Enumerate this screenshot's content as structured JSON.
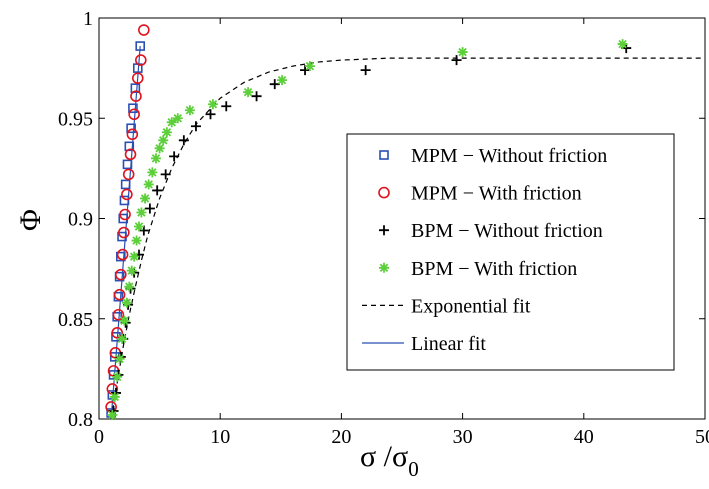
{
  "chart_data": {
    "type": "scatter",
    "xlabel_main": "σ /σ",
    "xlabel_sub": "0",
    "ylabel": "Φ",
    "xlim": [
      0,
      50
    ],
    "ylim": [
      0.8,
      1.0
    ],
    "xticks": [
      0,
      10,
      20,
      30,
      40,
      50
    ],
    "yticks": [
      0.8,
      0.85,
      0.9,
      0.95,
      1.0
    ],
    "xtick_labels": [
      "0",
      "10",
      "20",
      "30",
      "40",
      "50"
    ],
    "ytick_labels": [
      "0.8",
      "0.85",
      "0.9",
      "0.95",
      "1"
    ],
    "grid": false,
    "legend_position": "right",
    "legend": [
      {
        "label": "MPM − Without friction",
        "marker": "square",
        "color": "#2a4fb4"
      },
      {
        "label": "MPM − With friction",
        "marker": "circle",
        "color": "#e0141e"
      },
      {
        "label": "BPM − Without friction",
        "marker": "plus",
        "color": "#000000"
      },
      {
        "label": "BPM − With friction",
        "marker": "asterisk",
        "color": "#5ccf3a"
      },
      {
        "label": "Exponential fit",
        "marker": "dashed-line",
        "color": "#000000"
      },
      {
        "label": "Linear fit",
        "marker": "solid-line",
        "color": "#2a4fb4"
      }
    ],
    "series": [
      {
        "name": "MPM − Without friction",
        "marker": "square",
        "color": "#2a4fb4",
        "x": [
          1.0,
          1.1,
          1.2,
          1.3,
          1.4,
          1.5,
          1.6,
          1.7,
          1.8,
          1.9,
          2.0,
          2.1,
          2.2,
          2.35,
          2.5,
          2.65,
          2.8,
          3.0,
          3.2,
          3.4
        ],
        "y": [
          0.803,
          0.812,
          0.822,
          0.831,
          0.841,
          0.851,
          0.861,
          0.871,
          0.881,
          0.891,
          0.9,
          0.909,
          0.917,
          0.927,
          0.936,
          0.945,
          0.955,
          0.965,
          0.975,
          0.986
        ]
      },
      {
        "name": "MPM − With friction",
        "marker": "circle",
        "color": "#e0141e",
        "x": [
          1.0,
          1.1,
          1.2,
          1.35,
          1.5,
          1.6,
          1.7,
          1.8,
          1.95,
          2.05,
          2.15,
          2.3,
          2.45,
          2.6,
          2.75,
          2.9,
          3.05,
          3.2,
          3.45,
          3.7
        ],
        "y": [
          0.806,
          0.815,
          0.824,
          0.833,
          0.843,
          0.852,
          0.862,
          0.872,
          0.882,
          0.893,
          0.902,
          0.912,
          0.922,
          0.932,
          0.942,
          0.952,
          0.961,
          0.97,
          0.979,
          0.994
        ]
      },
      {
        "name": "BPM − Without friction",
        "marker": "plus",
        "color": "#000000",
        "x": [
          1.2,
          1.4,
          1.6,
          1.8,
          2.0,
          2.2,
          2.4,
          2.6,
          2.9,
          3.3,
          3.7,
          4.2,
          4.8,
          5.5,
          6.2,
          7.0,
          8.0,
          9.2,
          10.5,
          13.0,
          14.5,
          17.0,
          22.0,
          29.5,
          43.5
        ],
        "y": [
          0.804,
          0.813,
          0.822,
          0.831,
          0.84,
          0.848,
          0.857,
          0.865,
          0.873,
          0.882,
          0.894,
          0.905,
          0.914,
          0.922,
          0.931,
          0.939,
          0.946,
          0.952,
          0.956,
          0.961,
          0.967,
          0.974,
          0.974,
          0.979,
          0.985
        ]
      },
      {
        "name": "BPM − With friction",
        "marker": "asterisk",
        "color": "#5ccf3a",
        "x": [
          1.1,
          1.3,
          1.5,
          1.7,
          1.9,
          2.1,
          2.3,
          2.5,
          2.7,
          2.9,
          3.1,
          3.3,
          3.5,
          3.8,
          4.1,
          4.4,
          4.7,
          5.0,
          5.3,
          5.6,
          6.0,
          6.5,
          7.5,
          9.4,
          12.3,
          15.1,
          17.4,
          30.0,
          43.2
        ],
        "y": [
          0.802,
          0.811,
          0.821,
          0.83,
          0.84,
          0.849,
          0.858,
          0.866,
          0.874,
          0.881,
          0.889,
          0.896,
          0.903,
          0.91,
          0.917,
          0.923,
          0.93,
          0.935,
          0.939,
          0.943,
          0.948,
          0.95,
          0.954,
          0.957,
          0.963,
          0.969,
          0.976,
          0.983,
          0.987
        ]
      },
      {
        "name": "Exponential fit",
        "type": "line",
        "style": "dashed",
        "color": "#000000",
        "x": [
          1.0,
          1.5,
          2.0,
          2.5,
          3.0,
          3.5,
          4.0,
          5.0,
          6.0,
          7.0,
          8.0,
          10.0,
          12.0,
          14.0,
          16.0,
          18.0,
          20.0,
          24.0,
          30.0,
          40.0,
          50.0
        ],
        "y": [
          0.8,
          0.818,
          0.836,
          0.852,
          0.866,
          0.879,
          0.891,
          0.91,
          0.925,
          0.937,
          0.947,
          0.96,
          0.968,
          0.973,
          0.976,
          0.978,
          0.979,
          0.98,
          0.98,
          0.98,
          0.98
        ]
      },
      {
        "name": "Linear fit",
        "type": "line",
        "style": "solid",
        "color": "#2a4fb4",
        "x": [
          1.0,
          3.4
        ],
        "y": [
          0.8,
          0.986
        ]
      }
    ]
  }
}
